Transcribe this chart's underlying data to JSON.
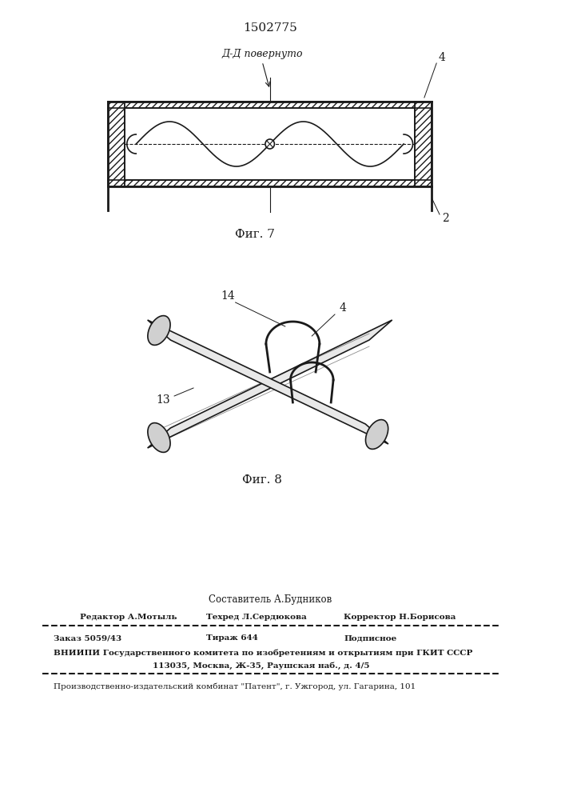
{
  "patent_number": "1502775",
  "fig7_label": "Фиг. 7",
  "fig8_label": "Фиг. 8",
  "section_label": "Д-Д повернуто",
  "label_2": "2",
  "label_4": "4",
  "label_13": "13",
  "label_14": "14",
  "footer_composer": "Составитель А.Будников",
  "footer_editor": "Редактор А.Мотыль",
  "footer_techred": "Техред Л.Сердюкова",
  "footer_corrector": "Корректор Н.Борисова",
  "footer_order": "Заказ 5059/43",
  "footer_tirazh": "Тираж 644",
  "footer_podpisnoe": "Подписное",
  "footer_vniiipi": "ВНИИПИ Государственного комитета по изобретениям и открытиям при ГКИТ СССР",
  "footer_address": "113035, Москва, Ж-35, Раушская наб., д. 4/5",
  "footer_publisher": "Производственно-издательский комбинат \"Патент\", г. Ужгород, ул. Гагарина, 101",
  "bg_color": "#ffffff",
  "line_color": "#1a1a1a",
  "hatch_color": "#1a1a1a"
}
